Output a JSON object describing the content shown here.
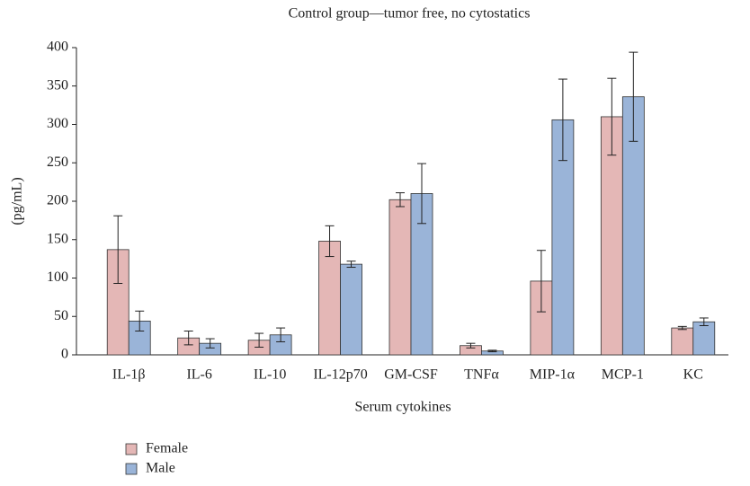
{
  "chart_data": {
    "type": "bar",
    "title": "Control group—tumor free, no cytostatics",
    "xlabel": "Serum cytokines",
    "ylabel": "(pg/mL)",
    "categories": [
      "IL-1β",
      "IL-6",
      "IL-10",
      "IL-12p70",
      "GM-CSF",
      "TNFα",
      "MIP-1α",
      "MCP-1",
      "KC"
    ],
    "series": [
      {
        "name": "Female",
        "color": "#e4b7b6",
        "values": [
          137,
          22,
          19,
          148,
          202,
          12,
          96,
          310,
          35
        ],
        "errors": [
          44,
          9,
          9,
          20,
          9,
          3,
          40,
          50,
          2
        ]
      },
      {
        "name": "Male",
        "color": "#9ab4d8",
        "values": [
          44,
          15,
          26,
          118,
          210,
          5,
          306,
          336,
          43
        ],
        "errors": [
          13,
          6,
          9,
          4,
          39,
          1,
          53,
          58,
          5
        ]
      }
    ],
    "ylim": [
      0,
      400
    ],
    "yticks": [
      0,
      50,
      100,
      150,
      200,
      250,
      300,
      350,
      400
    ],
    "grid": false,
    "legend": "bottom-left"
  }
}
